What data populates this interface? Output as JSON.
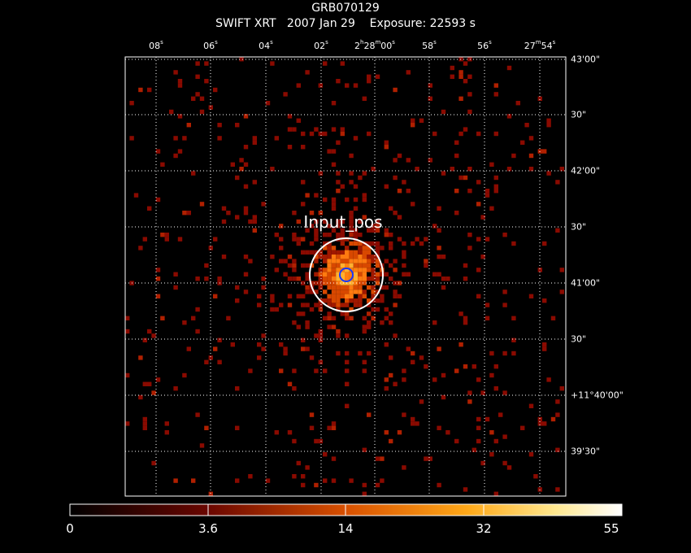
{
  "header": {
    "title": "GRB070129",
    "subtitle": "SWIFT XRT   2007 Jan 29    Exposure: 22593 s"
  },
  "ra_labels": [
    {
      "id": "ra-08",
      "main": "08",
      "sup": "s"
    },
    {
      "id": "ra-06",
      "main": "06",
      "sup": "s"
    },
    {
      "id": "ra-04",
      "main": "04",
      "sup": "s"
    },
    {
      "id": "ra-02",
      "main": "02",
      "sup": "s"
    },
    {
      "id": "ra-center",
      "p1": "2",
      "s1": "h",
      "p2": "28",
      "s2": "m",
      "p3": "00",
      "s3": "s"
    },
    {
      "id": "ra-58",
      "main": "58",
      "sup": "s"
    },
    {
      "id": "ra-56",
      "main": "56",
      "sup": "s"
    },
    {
      "id": "ra-54",
      "p1": "27",
      "s1": "m",
      "p2": "54",
      "s2": "s"
    }
  ],
  "dec_labels": [
    "43'00\"",
    "30\"",
    "42'00\"",
    "30\"",
    "41'00\"",
    "30\"",
    "+11°40'00\"",
    "39'30\""
  ],
  "source_label": "Input_pos",
  "colorbar": {
    "tick_labels": [
      "0",
      "3.6",
      "14",
      "32",
      "55"
    ],
    "colors": [
      "#000000",
      "#5a0000",
      "#c04000",
      "#ff9a10",
      "#ffe070",
      "#ffffff"
    ]
  },
  "colors": {
    "grid": "#ffffff",
    "circle": "#ffffff",
    "inner_circle": "#1020ff",
    "pixel_low": "#8a0a00",
    "pixel_mid": "#d84800",
    "pixel_high": "#ffb030"
  }
}
